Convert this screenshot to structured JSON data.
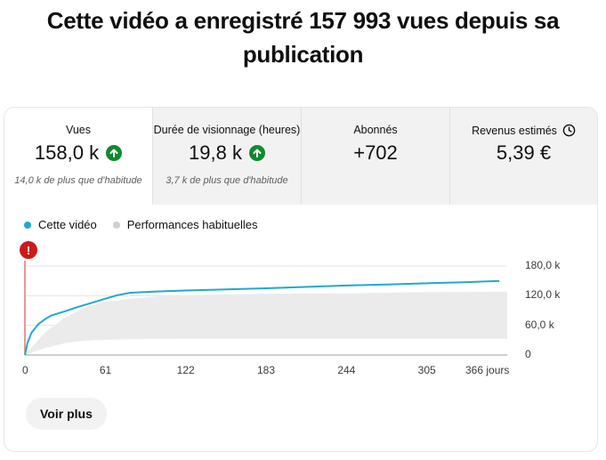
{
  "page": {
    "title": "Cette vidéo a enregistré 157 993 vues depuis sa publication"
  },
  "metrics": [
    {
      "label": "Vues",
      "value": "158,0 k",
      "trend": "up",
      "sub": "14,0 k de plus que d'habitude"
    },
    {
      "label": "Durée de visionnage (heures)",
      "value": "19,8 k",
      "trend": "up",
      "sub": "3,7 k de plus que d'habitude"
    },
    {
      "label": "Abonnés",
      "value": "+702",
      "trend": "",
      "sub": ""
    },
    {
      "label": "Revenus estimés",
      "value": "5,39 €",
      "trend": "",
      "sub": "",
      "icon": "clock-icon"
    }
  ],
  "legend": {
    "this_video": "Cette vidéo",
    "typical": "Performances habituelles"
  },
  "colors": {
    "line": "#1fa9d0",
    "band": "#ebebeb",
    "trend_up": "#118a2e",
    "alert": "#cc1a1a",
    "marker": "#e57373"
  },
  "chart_data": {
    "type": "line",
    "x_ticks": [
      "0",
      "61",
      "122",
      "183",
      "244",
      "305",
      "366 jours"
    ],
    "y_ticks": [
      "180,0 k",
      "120,0 k",
      "60,0 k",
      "0"
    ],
    "xlim": [
      0,
      366
    ],
    "ylim": [
      0,
      180000
    ],
    "series": [
      {
        "name": "Cette vidéo",
        "x": [
          0,
          2,
          5,
          10,
          15,
          20,
          30,
          40,
          50,
          61,
          70,
          80,
          100,
          122,
          150,
          183,
          210,
          244,
          275,
          305,
          335,
          360
        ],
        "values": [
          0,
          25000,
          45000,
          62000,
          72000,
          80000,
          88000,
          97000,
          105000,
          114000,
          121000,
          126000,
          128500,
          130500,
          132500,
          135000,
          137500,
          140500,
          142500,
          145000,
          147500,
          150000
        ]
      }
    ],
    "typical_band": {
      "name": "Performances habituelles",
      "x": [
        0,
        15,
        30,
        45,
        61,
        80,
        100,
        122,
        183,
        244,
        305,
        366
      ],
      "low": [
        0,
        14000,
        24000,
        29000,
        31000,
        32000,
        32500,
        33000,
        33000,
        33000,
        33000,
        33000
      ],
      "high": [
        0,
        45000,
        75000,
        95000,
        108000,
        114000,
        118000,
        121000,
        124000,
        125000,
        127000,
        128000
      ]
    }
  },
  "actions": {
    "more_label": "Voir plus"
  }
}
